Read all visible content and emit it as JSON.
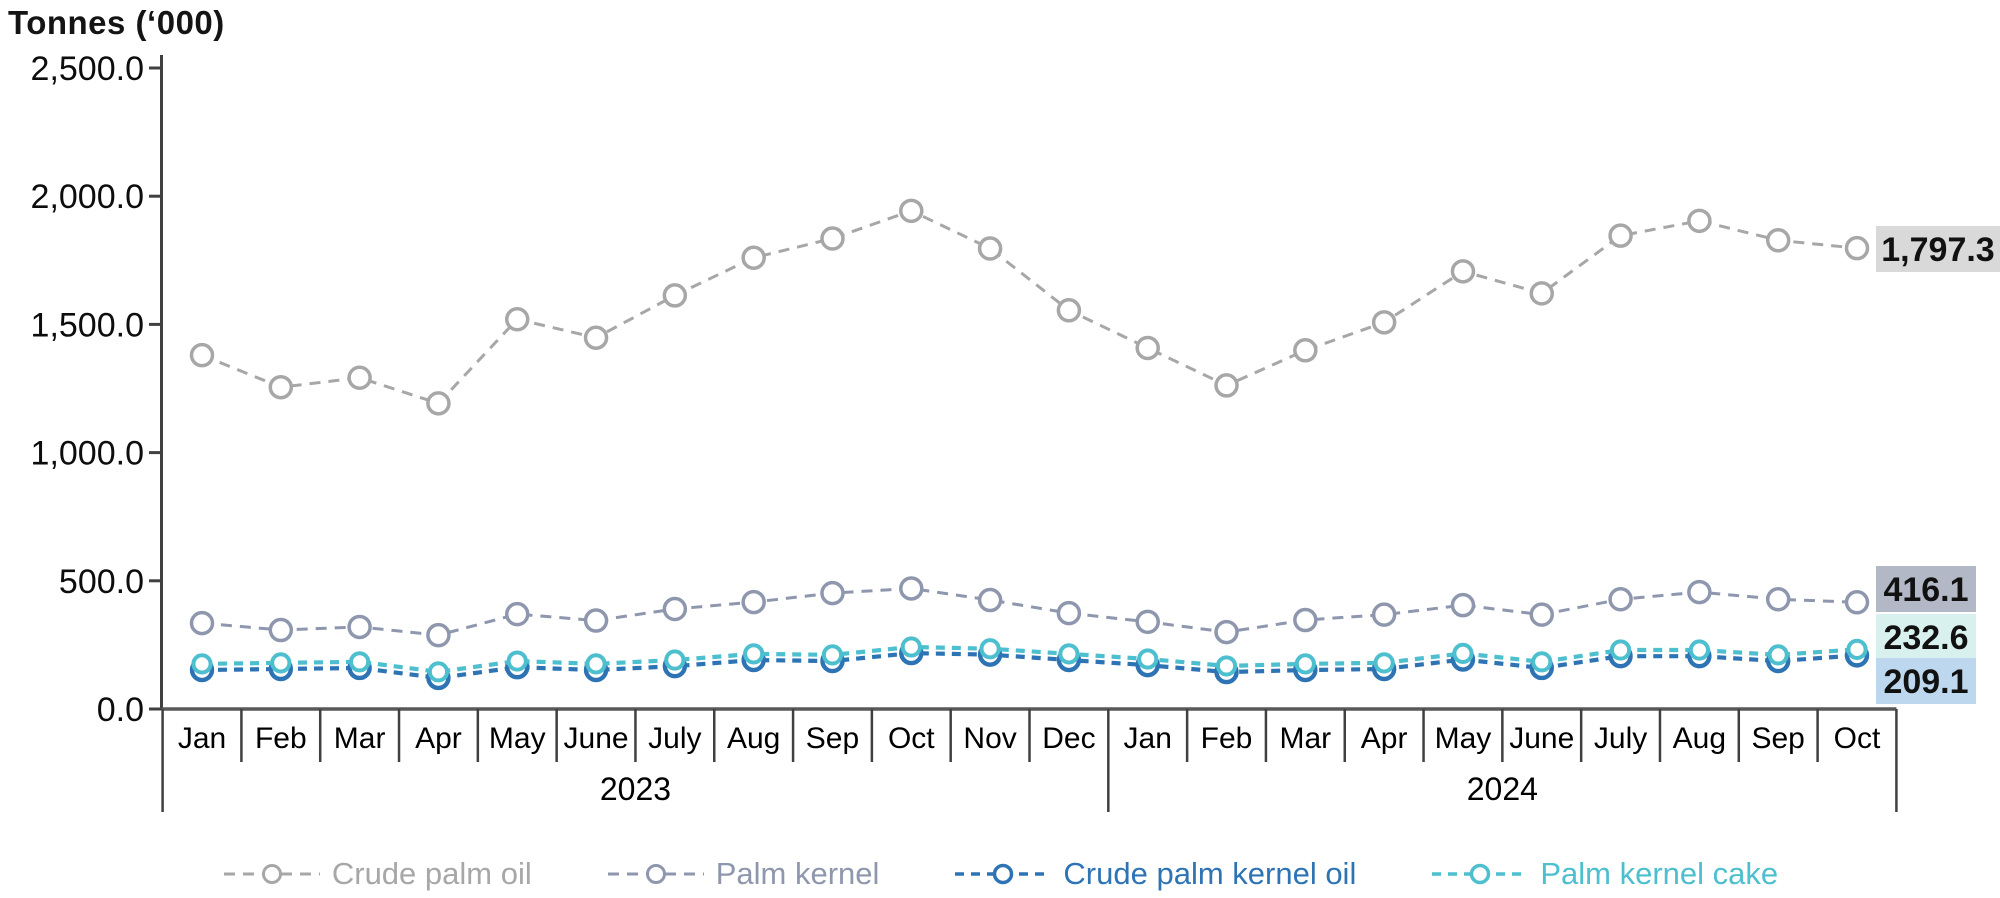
{
  "title": "Tonnes (‘000)",
  "chart_data": {
    "type": "line",
    "y_axis_title": "Tonnes (‘000)",
    "y_tick_labels": [
      "0.0",
      "500.0",
      "1,000.0",
      "1,500.0",
      "2,000.0",
      "2,500.0"
    ],
    "y_tick_step": 500,
    "ylim": [
      0,
      2500
    ],
    "grid": "off",
    "legend_position": "bottom",
    "x_categories": [
      "Jan",
      "Feb",
      "Mar",
      "Apr",
      "May",
      "June",
      "July",
      "Aug",
      "Sep",
      "Oct",
      "Nov",
      "Dec",
      "Jan",
      "Feb",
      "Mar",
      "Apr",
      "May",
      "June",
      "July",
      "Aug",
      "Sep",
      "Oct"
    ],
    "year_groups": [
      {
        "label": "2023",
        "start_index": 0,
        "end_index": 11
      },
      {
        "label": "2024",
        "start_index": 12,
        "end_index": 21
      }
    ],
    "series": [
      {
        "name": "Crude palm oil",
        "color": "#a7a7a7",
        "marker": "circle",
        "line_style": "dashed",
        "values": [
          1380,
          1255,
          1292,
          1192,
          1520,
          1448,
          1613,
          1760,
          1835,
          1943,
          1796,
          1555,
          1408,
          1262,
          1399,
          1508,
          1707,
          1621,
          1846,
          1904,
          1828,
          1797.3
        ]
      },
      {
        "name": "Palm kernel",
        "color": "#8e97ad",
        "marker": "circle",
        "line_style": "dashed",
        "values": [
          335,
          308,
          320,
          288,
          370,
          345,
          390,
          417,
          452,
          470,
          425,
          374,
          340,
          300,
          347,
          368,
          405,
          368,
          428,
          456,
          428,
          416.1
        ]
      },
      {
        "name": "Crude palm kernel oil",
        "color": "#2e74b5",
        "marker": "circle",
        "line_style": "dashed",
        "values": [
          152,
          156,
          160,
          121,
          163,
          152,
          167,
          191,
          187,
          218,
          212,
          191,
          171,
          144,
          152,
          156,
          193,
          160,
          206,
          206,
          187,
          209.1
        ]
      },
      {
        "name": "Palm kernel cake",
        "color": "#4dbfce",
        "marker": "circle",
        "line_style": "dashed",
        "values": [
          176,
          180,
          184,
          145,
          187,
          176,
          191,
          215,
          211,
          242,
          235,
          215,
          195,
          168,
          176,
          180,
          217,
          184,
          230,
          230,
          211,
          232.6
        ]
      }
    ],
    "end_labels": [
      {
        "text": "1,797.3",
        "series": "Crude palm oil",
        "bg": "#d9d9d9"
      },
      {
        "text": "416.1",
        "series": "Palm kernel",
        "bg": "#b2b8c5"
      },
      {
        "text": "232.6",
        "series": "Palm kernel cake",
        "bg": "#d9f1ee"
      },
      {
        "text": "209.1",
        "series": "Crude palm kernel oil",
        "bg": "#bdd7ee"
      }
    ]
  }
}
